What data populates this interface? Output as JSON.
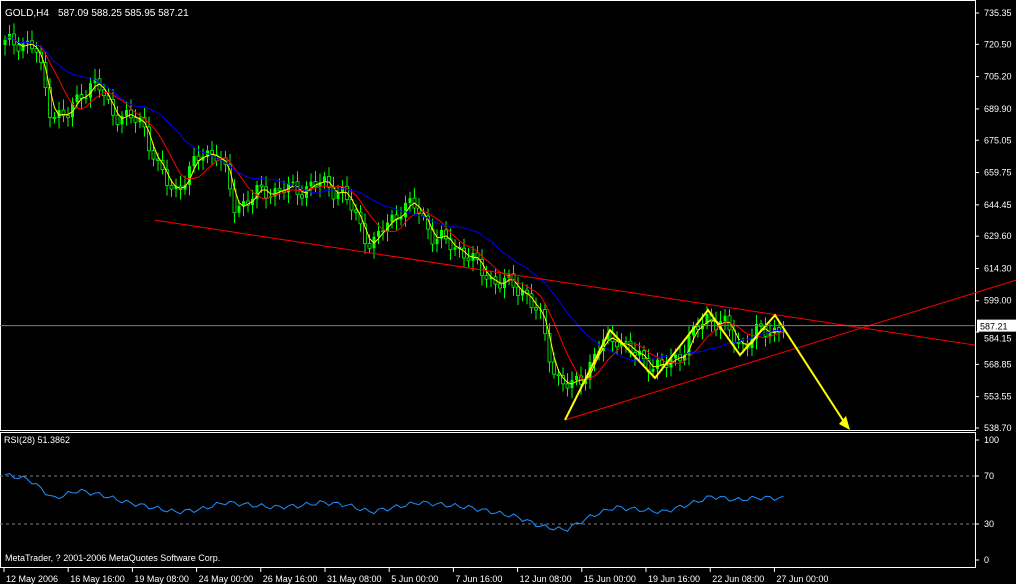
{
  "header": {
    "symbol": "GOLD,H4",
    "ohlc": "587.09 588.25 585.95 587.21"
  },
  "footer": {
    "copyright": "MetaTrader, ? 2001-2006 MetaQuotes Software Corp."
  },
  "rsi_panel": {
    "label": "RSI(28) 51.3862"
  },
  "colors": {
    "background": "#000000",
    "bull_candle": "#00ff00",
    "fast_ma": "#ffff00",
    "mid_ma": "#ff0000",
    "slow_ma": "#0000ff",
    "rsi": "#1e90ff",
    "trendline": "#ff0000",
    "pattern": "#ffff00",
    "axis": "#ffffff"
  },
  "chart_data": [
    {
      "type": "candlestick",
      "title": "GOLD,H4",
      "y_ticks": [
        "735.35",
        "720.50",
        "705.20",
        "689.90",
        "675.05",
        "659.75",
        "644.45",
        "629.60",
        "614.30",
        "599.00",
        "584.15",
        "568.85",
        "553.55",
        "538.70"
      ],
      "ylim": [
        538.7,
        735.35
      ],
      "last_price": "587.21",
      "x_ticks": [
        "12 May 2006",
        "16 May 16:00",
        "19 May 08:00",
        "24 May 00:00",
        "26 May 16:00",
        "31 May 08:00",
        "5 Jun 00:00",
        "7 Jun 16:00",
        "12 Jun 08:00",
        "15 Jun 00:00",
        "19 Jun 16:00",
        "22 Jun 08:00",
        "27 Jun 00:00"
      ],
      "approx_closes": [
        720.2,
        722.6,
        717.8,
        689.4,
        684.6,
        698.9,
        701.2,
        689.4,
        684.6,
        684.6,
        660.9,
        651.4,
        658.6,
        670.4,
        668.1,
        644.4,
        646.7,
        651.4,
        651.4,
        651.4,
        653.8,
        653.8,
        651.4,
        637.2,
        625.4,
        634.9,
        644.4,
        642.0,
        630.1,
        625.4,
        623.0,
        613.6,
        608.8,
        606.4,
        604.1,
        589.9,
        563.8,
        556.7,
        566.2,
        578.0,
        582.7,
        573.3,
        570.9,
        566.2,
        573.3,
        582.7,
        592.2,
        587.5,
        578.0,
        582.7,
        585.1,
        587.21
      ],
      "indicators": [
        "fast MA (yellow)",
        "mid MA (red)",
        "slow MA (blue)"
      ],
      "annotations": {
        "upper_trendline_prices": [
          637.2,
          578.0
        ],
        "lower_trendline_prices": [
          542.5,
          608.8
        ],
        "pattern_zigzag_prices": [
          542.5,
          585.1,
          562.4,
          594.6,
          573.3,
          592.2,
          538.7
        ]
      }
    },
    {
      "type": "line",
      "title": "RSI(28) 51.3862",
      "y_ticks": [
        "100",
        "70",
        "30",
        "0"
      ],
      "ylim": [
        0,
        100
      ],
      "levels": [
        70,
        30
      ],
      "values": [
        71,
        67,
        51,
        58,
        54,
        48,
        44,
        40,
        42,
        48,
        46,
        44,
        45,
        48,
        46,
        40,
        44,
        48,
        46,
        44,
        40,
        36,
        28,
        25,
        36,
        44,
        42,
        40,
        46,
        53,
        50,
        52,
        51.39
      ]
    }
  ]
}
